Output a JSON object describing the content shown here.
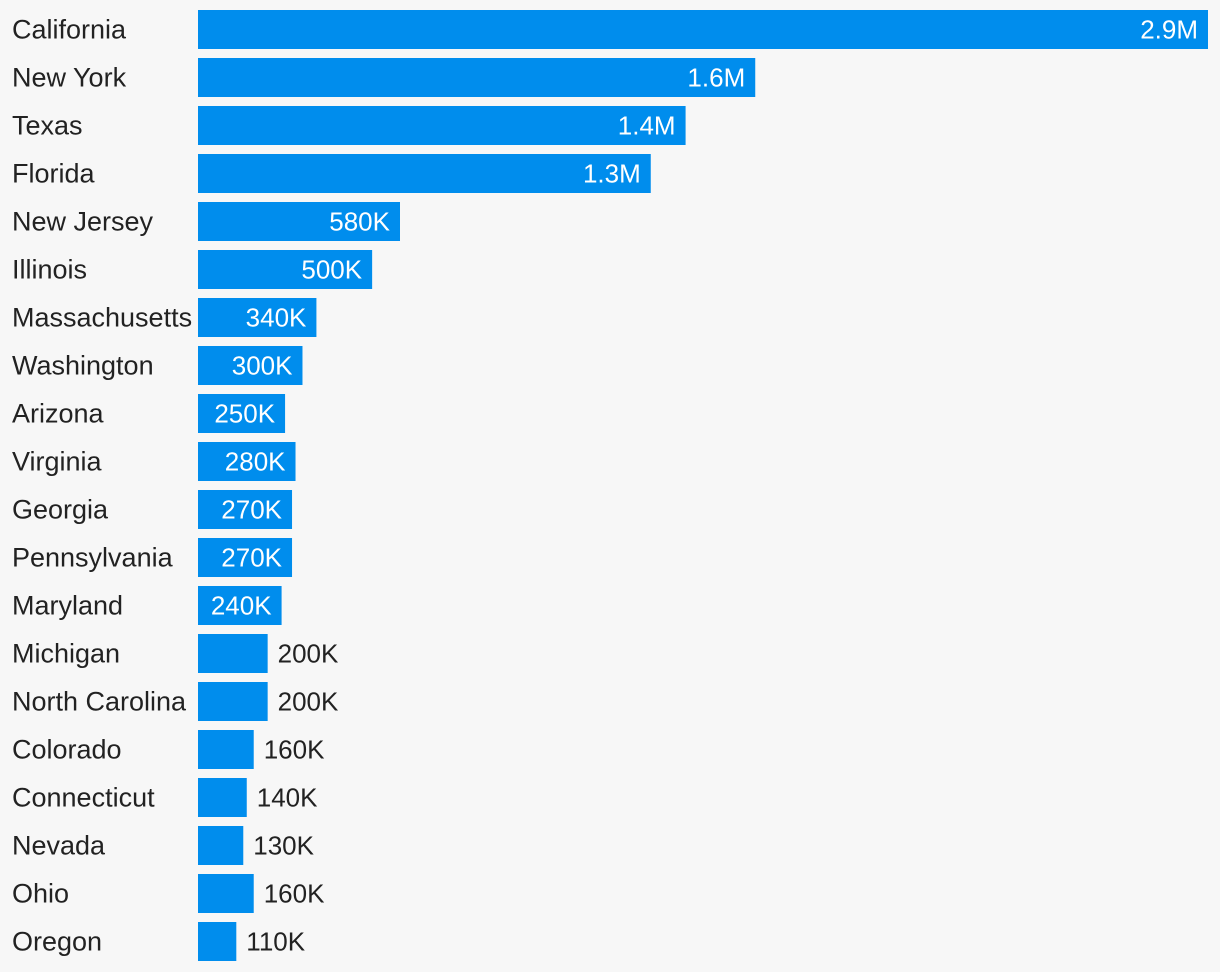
{
  "chart_data": {
    "type": "bar",
    "orientation": "horizontal",
    "categories": [
      "California",
      "New York",
      "Texas",
      "Florida",
      "New Jersey",
      "Illinois",
      "Massachusetts",
      "Washington",
      "Arizona",
      "Virginia",
      "Georgia",
      "Pennsylvania",
      "Maryland",
      "Michigan",
      "North Carolina",
      "Colorado",
      "Connecticut",
      "Nevada",
      "Ohio",
      "Oregon"
    ],
    "values": [
      2900000,
      1600000,
      1400000,
      1300000,
      580000,
      500000,
      340000,
      300000,
      250000,
      280000,
      270000,
      270000,
      240000,
      200000,
      200000,
      160000,
      140000,
      130000,
      160000,
      110000
    ],
    "value_labels": [
      "2.9M",
      "1.6M",
      "1.4M",
      "1.3M",
      "580K",
      "500K",
      "340K",
      "300K",
      "250K",
      "280K",
      "270K",
      "270K",
      "240K",
      "200K",
      "200K",
      "160K",
      "140K",
      "130K",
      "160K",
      "110K"
    ],
    "title": "",
    "xlabel": "",
    "ylabel": "",
    "xlim": [
      0,
      2900000
    ],
    "grid": false,
    "legend": "none",
    "colors": {
      "bar": "#008ded",
      "label_inside": "#ffffff",
      "label_outside": "#222222",
      "category_text": "#222222",
      "background": "#f7f7f7"
    }
  }
}
